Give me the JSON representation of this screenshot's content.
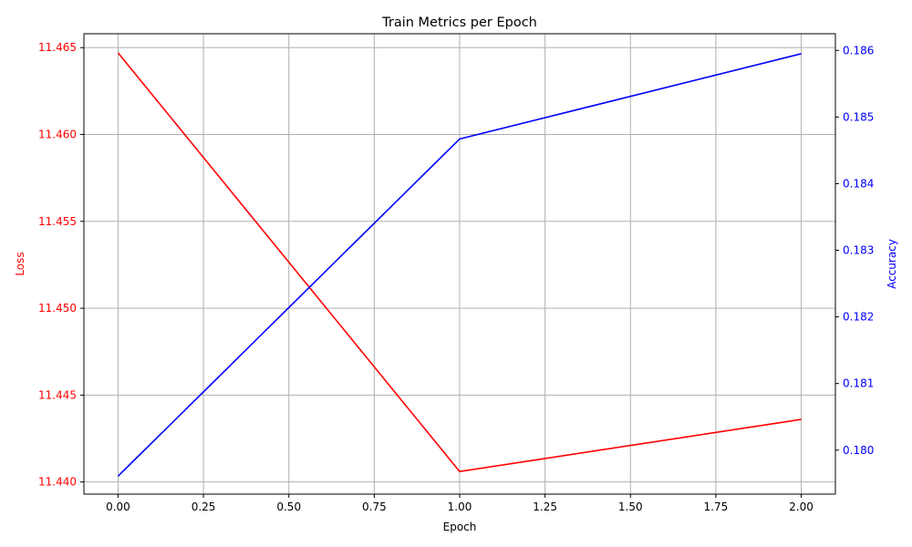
{
  "chart_data": {
    "type": "line",
    "title": "Train Metrics per Epoch",
    "xlabel": "Epoch",
    "x": [
      0,
      1,
      2
    ],
    "xlim": [
      -0.1,
      2.1
    ],
    "xticks": [
      "0.00",
      "0.25",
      "0.50",
      "0.75",
      "1.00",
      "1.25",
      "1.50",
      "1.75",
      "2.00"
    ],
    "grid": true,
    "left_axis": {
      "label": "Loss",
      "color": "#ff0000",
      "ylim": [
        11.4393,
        11.4658
      ],
      "ticks": [
        "11.440",
        "11.445",
        "11.450",
        "11.455",
        "11.460",
        "11.465"
      ]
    },
    "right_axis": {
      "label": "Accuracy",
      "color": "#0000ff",
      "ylim": [
        0.17934,
        0.18625
      ],
      "ticks": [
        "0.180",
        "0.181",
        "0.182",
        "0.183",
        "0.184",
        "0.185",
        "0.186"
      ]
    },
    "series": [
      {
        "name": "",
        "axis": "left",
        "color": "#ff0000",
        "values": [
          11.4647,
          11.4406,
          11.4436
        ]
      },
      {
        "name": "",
        "axis": "right",
        "color": "#0000ff",
        "values": [
          0.17961,
          0.18467,
          0.18595
        ]
      }
    ]
  }
}
